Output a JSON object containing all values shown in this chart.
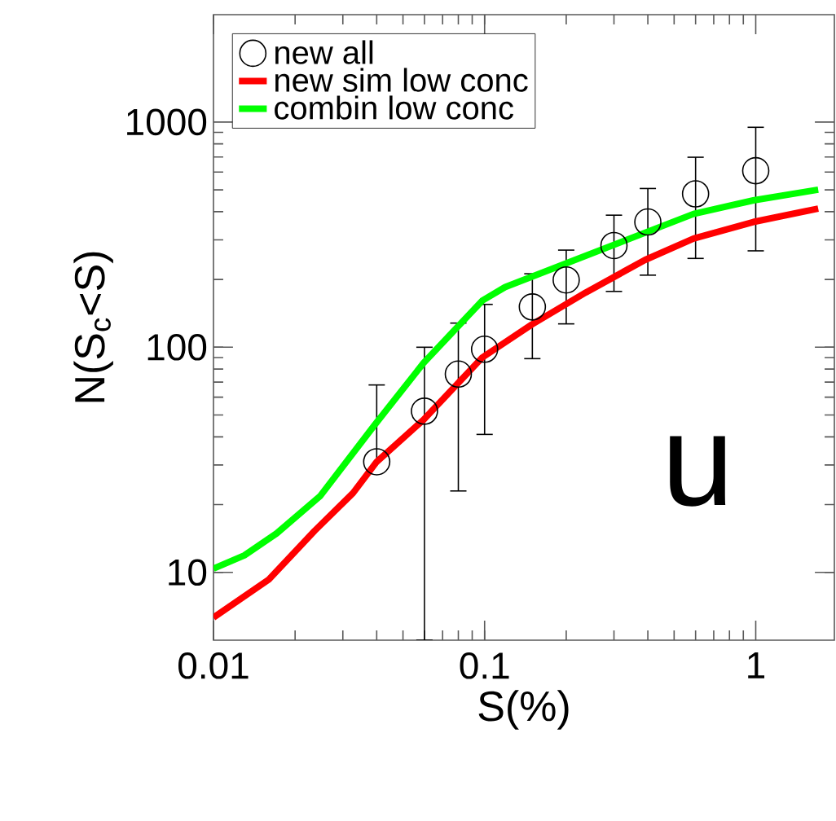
{
  "chart_data": {
    "type": "line",
    "xlabel": "S(%)",
    "ylabel": "N(S$_{c}$<S)",
    "log": "xy",
    "xlim": [
      0.01,
      1.95
    ],
    "ylim": [
      5,
      3000
    ],
    "xticks": [
      0.01,
      0.1,
      1
    ],
    "yticks": [
      10,
      100,
      1000
    ],
    "legend": "top left",
    "annotations": [
      "u"
    ],
    "series": [
      {
        "name": "new all",
        "type": "scatter",
        "color": "#000000",
        "marker": "circle",
        "x": [
          0.04,
          0.06,
          0.08,
          0.1,
          0.15,
          0.2,
          0.3,
          0.4,
          0.6,
          1
        ],
        "values": [
          31,
          52,
          76,
          98,
          151,
          199,
          283,
          360,
          480,
          608
        ],
        "errors": [
          [
            31,
            68
          ],
          [
            5,
            100
          ],
          [
            23,
            128
          ],
          [
            41,
            155
          ],
          [
            89,
            212
          ],
          [
            127,
            270
          ],
          [
            177,
            386
          ],
          [
            209,
            507
          ],
          [
            248,
            698
          ],
          [
            268,
            948
          ]
        ]
      },
      {
        "name": "new sim low conc",
        "color": "#ff0000",
        "x": [
          0.01,
          0.016,
          0.0236,
          0.0327,
          0.04,
          0.0595,
          0.098,
          0.149,
          0.236,
          0.39,
          0.59,
          0.98,
          1.7
        ],
        "values": [
          6.3,
          9.3,
          15.3,
          22.5,
          31,
          47.6,
          90,
          126,
          175,
          244,
          304,
          360,
          413
        ]
      },
      {
        "name": "combin low conc",
        "color": "#00ff00",
        "x": [
          0.01,
          0.013,
          0.0171,
          0.0248,
          0.0392,
          0.0595,
          0.098,
          0.119,
          0.215,
          0.59,
          0.98,
          1.7
        ],
        "values": [
          10.4,
          11.9,
          14.9,
          21.9,
          45,
          85,
          161,
          185,
          244,
          391,
          449,
          501
        ]
      }
    ]
  }
}
